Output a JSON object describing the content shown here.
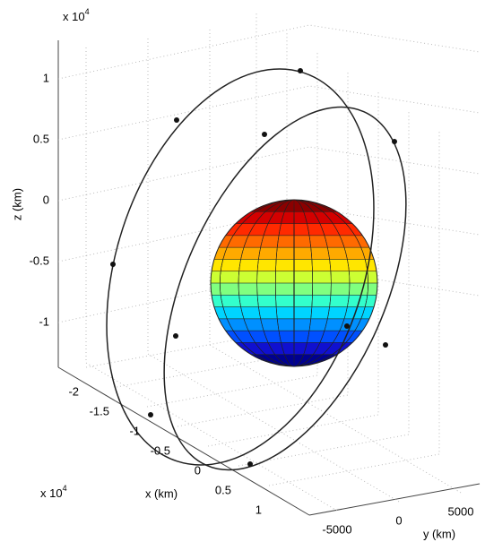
{
  "chart_data": {
    "type": "orbit3d",
    "xlabel": "x (km)",
    "ylabel": "y (km)",
    "zlabel": "z (km)",
    "xscale": {
      "base": "x 10",
      "power": "4"
    },
    "zscale": {
      "base": "x 10",
      "power": "4"
    },
    "xticks": [
      -2,
      -1.5,
      -1,
      -0.5,
      0,
      0.5,
      1
    ],
    "yticks": [
      -5000,
      0,
      5000
    ],
    "zticks": [
      -1,
      -0.5,
      0,
      0.5,
      1
    ],
    "grid": true
  }
}
